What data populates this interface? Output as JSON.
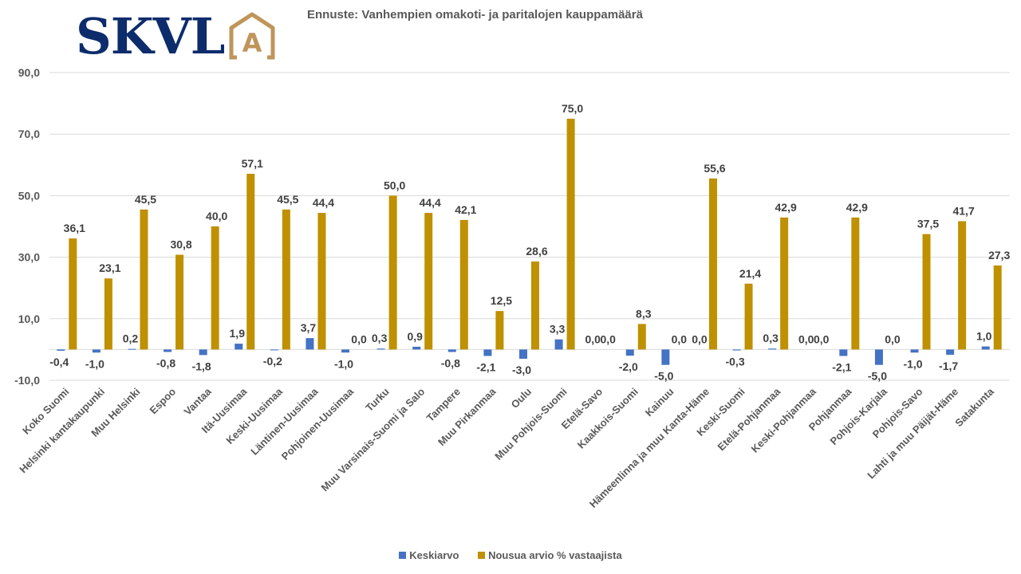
{
  "logo": {
    "text": "SKVL",
    "mark": "A",
    "text_color": "#0d2c6c",
    "mark_color": "#bf955a"
  },
  "chart_data": {
    "type": "bar",
    "title": "Ennuste: Vanhempien omakoti- ja paritalojen kauppamäärä",
    "xlabel": "",
    "ylabel": "",
    "ylim": [
      -10,
      90
    ],
    "yticks": [
      90,
      70,
      50,
      30,
      10,
      -10
    ],
    "ytick_labels": [
      "90,0",
      "70,0",
      "50,0",
      "30,0",
      "10,0",
      "-10,0"
    ],
    "grid": true,
    "legend_position": "bottom",
    "categories": [
      "Koko Suomi",
      "Helsinki kantakaupunki",
      "Muu Helsinki",
      "Espoo",
      "Vantaa",
      "Itä-Uusimaa",
      "Keski-Uusimaa",
      "Läntinen-Uusimaa",
      "Pohjoinen-Uusimaa",
      "Turku",
      "Muu Varsinais-Suomi ja Salo",
      "Tampere",
      "Muu Pirkanmaa",
      "Oulu",
      "Muu Pohjois-Suomi",
      "Etelä-Savo",
      "Kaakkois-Suomi",
      "Kainuu",
      "Hämeenlinna ja muu Kanta-Häme",
      "Keski-Suomi",
      "Etelä-Pohjanmaa",
      "Keski-Pohjanmaa",
      "Pohjanmaa",
      "Pohjois-Karjala",
      "Pohjois-Savo",
      "Lahti ja muu Päijät-Häme",
      "Satakunta"
    ],
    "series": [
      {
        "name": "Keskiarvo",
        "color": "#4472c4",
        "values": [
          -0.4,
          -1.0,
          0.2,
          -0.8,
          -1.8,
          1.9,
          -0.2,
          3.7,
          -1.0,
          0.3,
          0.9,
          -0.8,
          -2.1,
          -3.0,
          3.3,
          0.0,
          -2.0,
          -5.0,
          0.0,
          -0.3,
          0.3,
          0.0,
          -2.1,
          -5.0,
          -1.0,
          -1.7,
          1.0
        ],
        "labels": [
          "-0,4",
          "-1,0",
          "0,2",
          "-0,8",
          "-1,8",
          "1,9",
          "-0,2",
          "3,7",
          "-1,0",
          "0,3",
          "0,9",
          "-0,8",
          "-2,1",
          "-3,0",
          "3,3",
          "0,0",
          "-2,0",
          "-5,0",
          "0,0",
          "-0,3",
          "0,3",
          "0,0",
          "-2,1",
          "-5,0",
          "-1,0",
          "-1,7",
          "1,0"
        ]
      },
      {
        "name": "Nousua arvio % vastaajista",
        "color": "#bf9000",
        "values": [
          36.1,
          23.1,
          45.5,
          30.8,
          40.0,
          57.1,
          45.5,
          44.4,
          0.0,
          50.0,
          44.4,
          42.1,
          12.5,
          28.6,
          75.0,
          0.0,
          8.3,
          0.0,
          55.6,
          21.4,
          42.9,
          0.0,
          42.9,
          0.0,
          37.5,
          41.7,
          27.3
        ],
        "labels": [
          "36,1",
          "23,1",
          "45,5",
          "30,8",
          "40,0",
          "57,1",
          "45,5",
          "44,4",
          "0,0",
          "50,0",
          "44,4",
          "42,1",
          "12,5",
          "28,6",
          "75,0",
          "0,0",
          "8,3",
          "0,0",
          "55,6",
          "21,4",
          "42,9",
          "0,0",
          "42,9",
          "0,0",
          "37,5",
          "41,7",
          "27,3"
        ]
      }
    ]
  },
  "legend": {
    "items": [
      {
        "label": "Keskiarvo",
        "color": "#4472c4"
      },
      {
        "label": "Nousua arvio % vastaajista",
        "color": "#bf9000"
      }
    ]
  }
}
